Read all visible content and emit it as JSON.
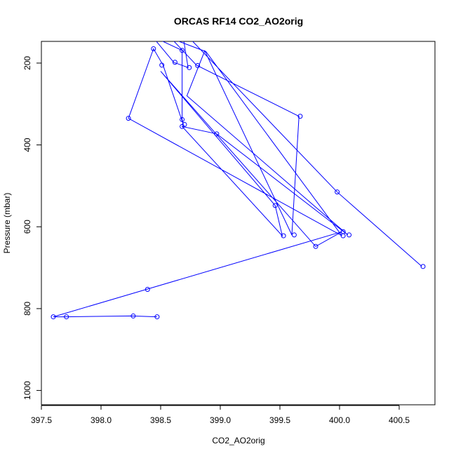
{
  "chart_data": {
    "type": "line",
    "title": "ORCAS RF14 CO2_AO2orig",
    "xlabel": "CO2_AO2orig",
    "ylabel": "Pressure (mbar)",
    "xlim": [
      397.5,
      400.8
    ],
    "ylim": [
      1035,
      147
    ],
    "y_inverted": true,
    "xticks": [
      397.5,
      398.0,
      398.5,
      399.0,
      399.5,
      400.0,
      400.5
    ],
    "xtick_labels": [
      "397.5",
      "398.0",
      "398.5",
      "399.0",
      "399.5",
      "400.0",
      "400.5"
    ],
    "yticks": [
      200,
      400,
      600,
      800,
      1000
    ],
    "ytick_labels": [
      "200",
      "400",
      "600",
      "800",
      "1000"
    ],
    "grid": false,
    "legend": "none",
    "series": [
      {
        "color": "#0000ff",
        "marker": "open-circle",
        "x": [
          398.47,
          398.26,
          397.7,
          397.6,
          398.38,
          400.02,
          399.8,
          398.5,
          399.46,
          399.52,
          398.68,
          398.97,
          400.07,
          398.72,
          398.87,
          399.6,
          399.66,
          398.8,
          398.59,
          398.88,
          400.02,
          398.23,
          398.44,
          398.52,
          398.69,
          398.68,
          398.68,
          398.43,
          398.61,
          398.73,
          398.68,
          399.98,
          400.69
        ],
        "y": [
          820,
          818,
          820,
          820,
          753,
          612,
          648,
          220,
          548,
          622,
          355,
          373,
          620,
          280,
          170,
          620,
          330,
          205,
          140,
          172,
          622,
          335,
          165,
          205,
          350,
          338,
          169,
          135,
          198,
          211,
          120,
          515,
          697
        ],
        "markers": [
          {
            "x": 398.47,
            "y": 820
          },
          {
            "x": 398.27,
            "y": 818
          },
          {
            "x": 397.71,
            "y": 820
          },
          {
            "x": 397.6,
            "y": 820
          },
          {
            "x": 398.39,
            "y": 753
          },
          {
            "x": 400.03,
            "y": 612
          },
          {
            "x": 400.03,
            "y": 622
          },
          {
            "x": 399.8,
            "y": 648
          },
          {
            "x": 400.08,
            "y": 620
          },
          {
            "x": 399.53,
            "y": 622
          },
          {
            "x": 399.62,
            "y": 620
          },
          {
            "x": 399.46,
            "y": 548
          },
          {
            "x": 398.97,
            "y": 373
          },
          {
            "x": 398.68,
            "y": 355
          },
          {
            "x": 398.7,
            "y": 350
          },
          {
            "x": 398.68,
            "y": 338
          },
          {
            "x": 398.23,
            "y": 335
          },
          {
            "x": 399.67,
            "y": 330
          },
          {
            "x": 398.74,
            "y": 211
          },
          {
            "x": 398.81,
            "y": 206
          },
          {
            "x": 398.51,
            "y": 205
          },
          {
            "x": 398.62,
            "y": 198
          },
          {
            "x": 398.68,
            "y": 169
          },
          {
            "x": 398.44,
            "y": 165
          },
          {
            "x": 399.98,
            "y": 515
          },
          {
            "x": 400.7,
            "y": 697
          }
        ]
      }
    ]
  }
}
